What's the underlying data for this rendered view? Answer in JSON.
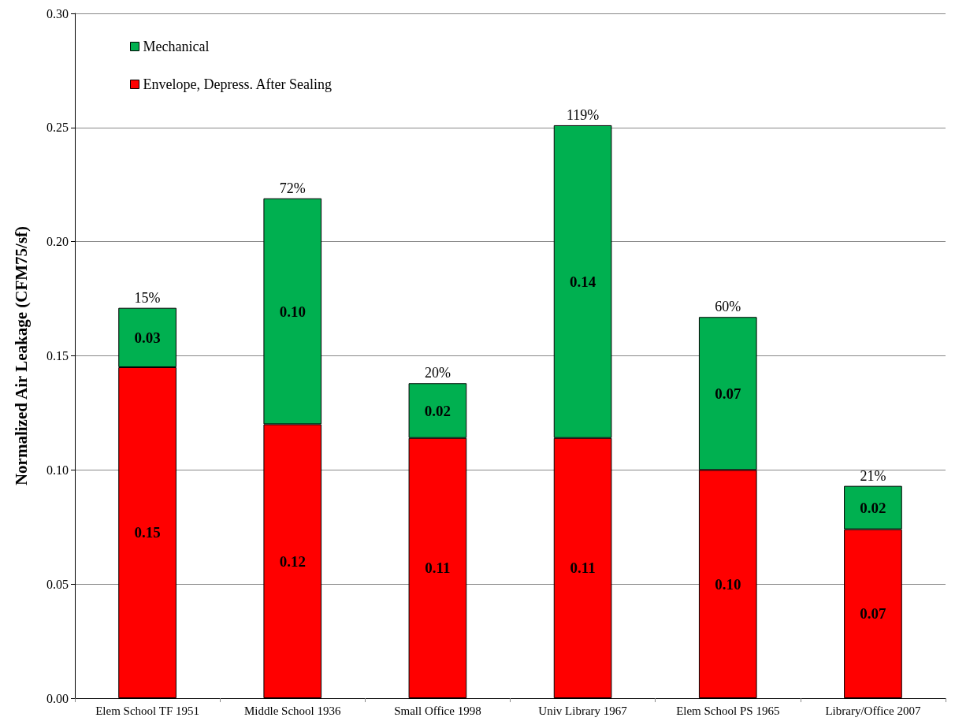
{
  "chart_data": {
    "type": "bar",
    "stacked": true,
    "ylabel": "Normalized Air Leakage (CFM75/sf)",
    "categories": [
      "Elem School TF 1951",
      "Middle School 1936",
      "Small Office 1998",
      "Univ Library 1967",
      "Elem School PS 1965",
      "Library/Office 2007"
    ],
    "series": [
      {
        "name": "Envelope, Depress. After Sealing",
        "color": "#ff0000",
        "values": [
          0.145,
          0.12,
          0.114,
          0.114,
          0.1,
          0.074
        ],
        "value_labels": [
          "0.15",
          "0.12",
          "0.11",
          "0.11",
          "0.10",
          "0.07"
        ]
      },
      {
        "name": "Mechanical",
        "color": "#00b050",
        "values": [
          0.026,
          0.099,
          0.024,
          0.137,
          0.067,
          0.019
        ],
        "value_labels": [
          "0.03",
          "0.10",
          "0.02",
          "0.14",
          "0.07",
          "0.02"
        ]
      }
    ],
    "annotations": [
      {
        "text": "15%",
        "x": "Elem School TF 1951",
        "y": 0.171
      },
      {
        "text": "72%",
        "x": "Middle School 1936",
        "y": 0.219
      },
      {
        "text": "20%",
        "x": "Small Office 1998",
        "y": 0.138
      },
      {
        "text": "119%",
        "x": "Univ Library 1967",
        "y": 0.251
      },
      {
        "text": "60%",
        "x": "Elem School PS 1965",
        "y": 0.167
      },
      {
        "text": "21%",
        "x": "Library/Office 2007",
        "y": 0.093
      }
    ],
    "ylim": [
      0,
      0.3
    ],
    "yticks": [
      {
        "value": 0,
        "label": "0.00"
      },
      {
        "value": 0.05,
        "label": "0.05"
      },
      {
        "value": 0.1,
        "label": "0.10"
      },
      {
        "value": 0.15,
        "label": "0.15"
      },
      {
        "value": 0.2,
        "label": "0.20"
      },
      {
        "value": 0.25,
        "label": "0.25"
      },
      {
        "value": 0.3,
        "label": "0.30"
      }
    ],
    "grid": "y",
    "legend": "top left"
  }
}
